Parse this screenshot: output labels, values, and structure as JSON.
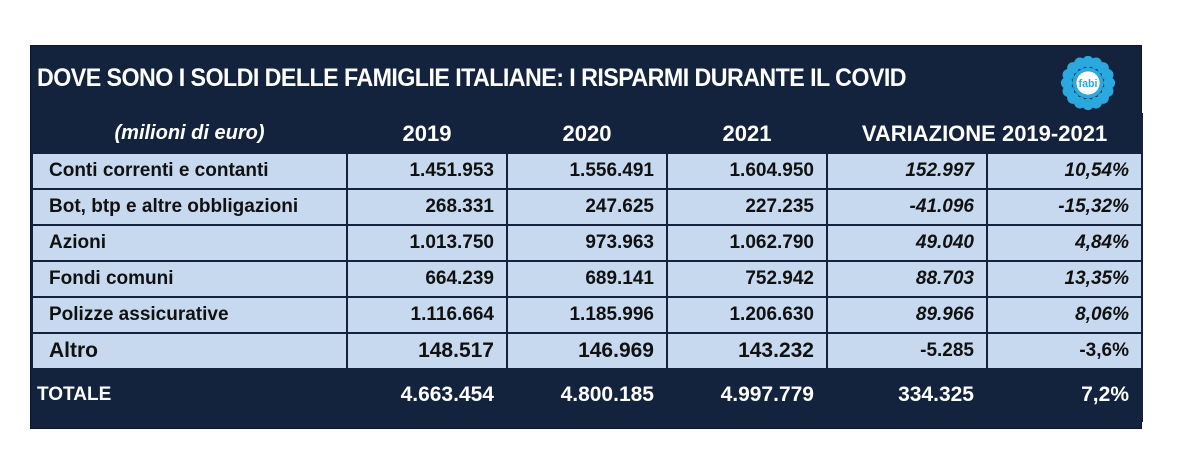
{
  "title": "DOVE SONO I SOLDI DELLE FAMIGLIE ITALIANE: I RISPARMI DURANTE IL COVID",
  "logo_text": "fabi",
  "colors": {
    "navy": "#14233d",
    "row_bg": "#c6d9ee",
    "logo": "#2aa9e0"
  },
  "header": {
    "unit": "(milioni di euro)",
    "y2019": "2019",
    "y2020": "2020",
    "y2021": "2021",
    "variation": "VARIAZIONE 2019-2021"
  },
  "rows": [
    {
      "label": "Conti correnti e contanti",
      "y2019": "1.451.953",
      "y2020": "1.556.491",
      "y2021": "1.604.950",
      "var_abs": "152.997",
      "var_pct": "10,54%"
    },
    {
      "label": "Bot, btp e altre obbligazioni",
      "y2019": "268.331",
      "y2020": "247.625",
      "y2021": "227.235",
      "var_abs": "-41.096",
      "var_pct": "-15,32%"
    },
    {
      "label": "Azioni",
      "y2019": "1.013.750",
      "y2020": "973.963",
      "y2021": "1.062.790",
      "var_abs": "49.040",
      "var_pct": "4,84%"
    },
    {
      "label": "Fondi comuni",
      "y2019": "664.239",
      "y2020": "689.141",
      "y2021": "752.942",
      "var_abs": "88.703",
      "var_pct": "13,35%"
    },
    {
      "label": "Polizze assicurative",
      "y2019": "1.116.664",
      "y2020": "1.185.996",
      "y2021": "1.206.630",
      "var_abs": "89.966",
      "var_pct": "8,06%"
    },
    {
      "label": "Altro",
      "y2019": "148.517",
      "y2020": "146.969",
      "y2021": "143.232",
      "var_abs": "-5.285",
      "var_pct": "-3,6%"
    }
  ],
  "total": {
    "label": "TOTALE",
    "y2019": "4.663.454",
    "y2020": "4.800.185",
    "y2021": "4.997.779",
    "var_abs": "334.325",
    "var_pct": "7,2%"
  },
  "chart_data": {
    "type": "table",
    "title": "DOVE SONO I SOLDI DELLE FAMIGLIE ITALIANE: I RISPARMI DURANTE IL COVID",
    "unit": "milioni di euro",
    "columns": [
      "(milioni di euro)",
      "2019",
      "2020",
      "2021",
      "Variazione 2019-2021 (assoluta)",
      "Variazione 2019-2021 (%)"
    ],
    "rows": [
      [
        "Conti correnti e contanti",
        1451953,
        1556491,
        1604950,
        152997,
        10.54
      ],
      [
        "Bot, btp e altre obbligazioni",
        268331,
        247625,
        227235,
        -41096,
        -15.32
      ],
      [
        "Azioni",
        1013750,
        973963,
        1062790,
        49040,
        4.84
      ],
      [
        "Fondi comuni",
        664239,
        689141,
        752942,
        88703,
        13.35
      ],
      [
        "Polizze assicurative",
        1116664,
        1185996,
        1206630,
        89966,
        8.06
      ],
      [
        "Altro",
        148517,
        146969,
        143232,
        -5285,
        -3.6
      ],
      [
        "TOTALE",
        4663454,
        4800185,
        4997779,
        334325,
        7.2
      ]
    ]
  }
}
